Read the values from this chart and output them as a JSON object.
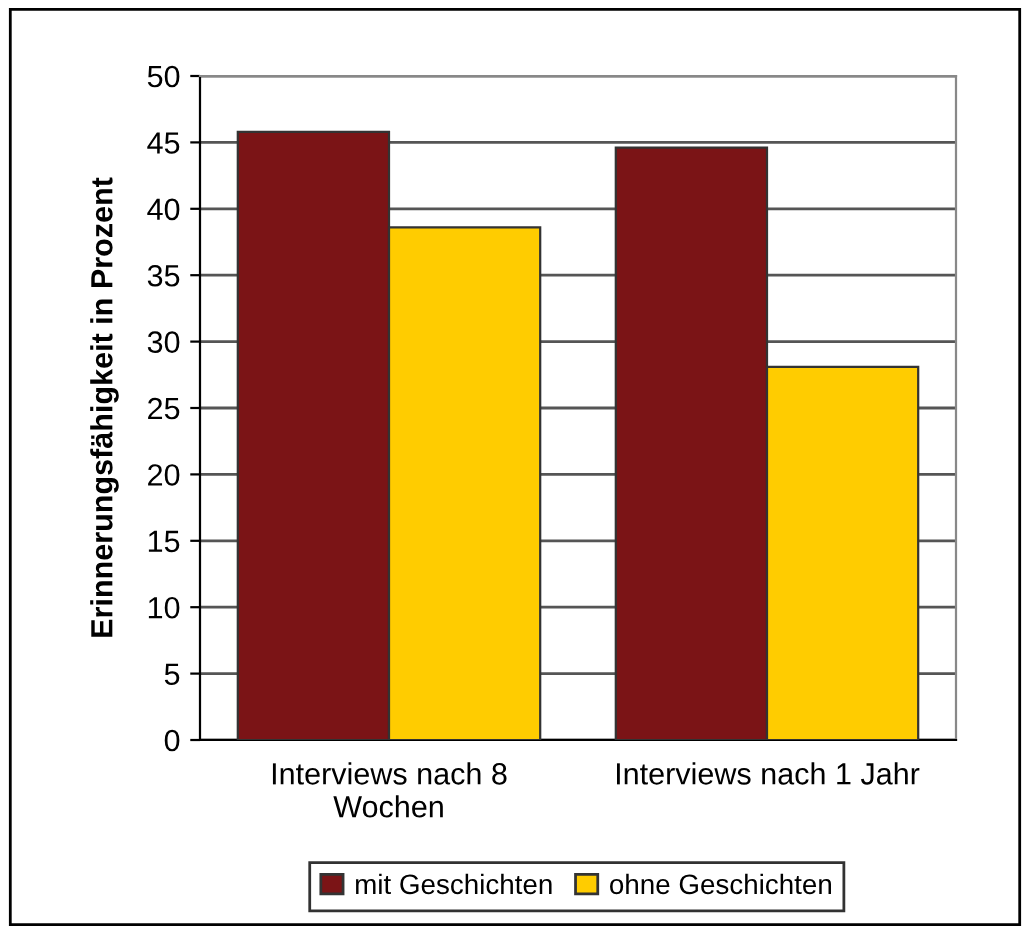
{
  "chart_data": {
    "type": "bar",
    "ylabel": "Erinnerungsfähigkeit in Prozent",
    "categories": [
      "Interviews nach 8\nWochen",
      "Interviews nach 1 Jahr"
    ],
    "series": [
      {
        "name": "mit Geschichten",
        "color": "#7b1416",
        "values": [
          45.8,
          44.6
        ]
      },
      {
        "name": "ohne Geschichten",
        "color": "#ffcc00",
        "values": [
          38.6,
          28.1
        ]
      }
    ],
    "ylim": [
      0,
      50
    ],
    "yticks": [
      0,
      5,
      10,
      15,
      20,
      25,
      30,
      35,
      40,
      45,
      50
    ],
    "grid": "y",
    "legend": "bottom"
  }
}
